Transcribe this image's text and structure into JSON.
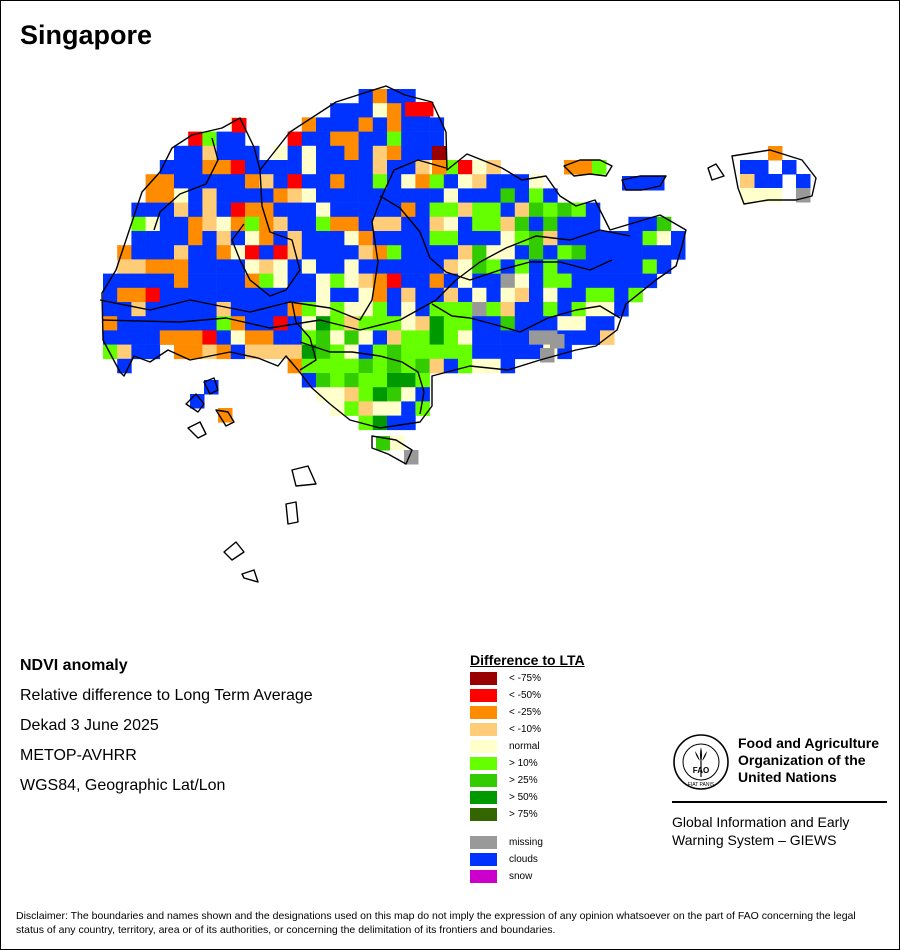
{
  "map": {
    "title": "Singapore"
  },
  "info": {
    "heading": "NDVI anomaly",
    "line1": "Relative difference to Long Term Average",
    "line2": "Dekad 3 June 2025",
    "line3": "METOP-AVHRR",
    "line4": "WGS84, Geographic Lat/Lon"
  },
  "legend": {
    "title": "Difference to LTA",
    "items": [
      {
        "label": "< -75%",
        "color": "#990000"
      },
      {
        "label": "< -50%",
        "color": "#ff0000"
      },
      {
        "label": "< -25%",
        "color": "#ff8c00"
      },
      {
        "label": "< -10%",
        "color": "#ffcc77"
      },
      {
        "label": "normal",
        "color": "#ffffcc"
      },
      {
        "label": "> 10%",
        "color": "#66ff00"
      },
      {
        "label": "> 25%",
        "color": "#33cc00"
      },
      {
        "label": "> 50%",
        "color": "#009900"
      },
      {
        "label": "> 75%",
        "color": "#336600"
      }
    ],
    "extra": [
      {
        "label": "missing",
        "color": "#999999"
      },
      {
        "label": "clouds",
        "color": "#0033ff"
      },
      {
        "label": "snow",
        "color": "#cc00cc"
      }
    ]
  },
  "organization": {
    "logo_icon": "fao-logo-icon",
    "logo_text": "FAO",
    "logo_motto": "FIAT PANIS",
    "name_line1": "Food and Agriculture",
    "name_line2": "Organization of the",
    "name_line3": "United Nations",
    "system_line1": "Global Information and Early",
    "system_line2": "Warning System – GIEWS"
  },
  "disclaimer": "Disclaimer: The boundaries and names shown and the designations used on this map do not imply the expression of any opinion whatsoever on the part of FAO concerning the legal status of any country, territory, area or of its authorities, or concerning the delimitation of its frontiers and boundaries."
}
